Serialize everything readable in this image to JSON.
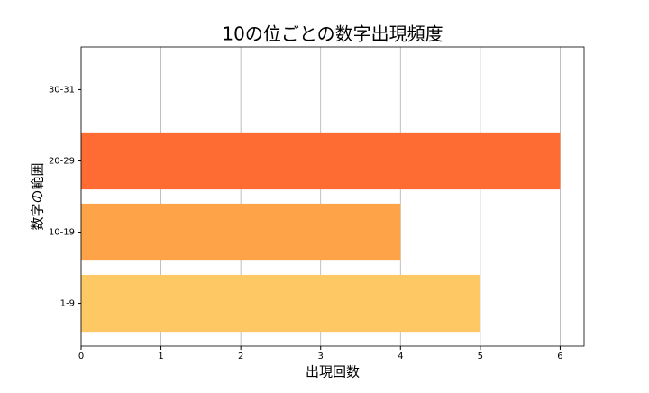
{
  "chart_data": {
    "type": "hbar",
    "title": "10の位ごとの数字出現頻度",
    "x_label": "出現回数",
    "y_label": "数字の範囲",
    "categories": [
      "1-9",
      "10-19",
      "20-29",
      "30-31"
    ],
    "values": [
      5,
      4,
      6,
      0
    ],
    "colors": [
      "#fec965",
      "#fea347",
      "#fe6b33",
      "#fe3b1f"
    ],
    "xlim": [
      0,
      6.3
    ],
    "xticks": [
      0,
      1,
      2,
      3,
      4,
      5,
      6
    ],
    "grid": true
  }
}
